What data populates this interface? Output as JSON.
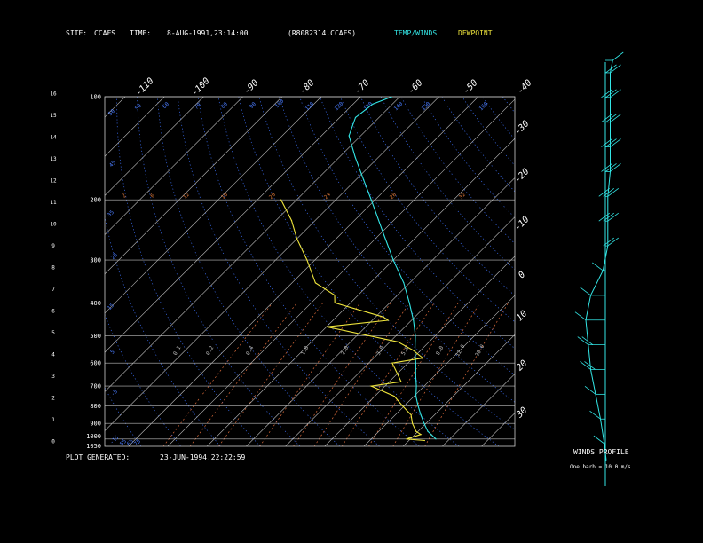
{
  "header": {
    "site_label": "SITE:",
    "site_value": "CCAFS",
    "time_label": "TIME:",
    "time_value": "8-AUG-1991,23:14:00",
    "file": "(R8082314.CCAFS)",
    "temp_legend": "TEMP/WINDS",
    "dew_legend": "DEWPOINT"
  },
  "footer": {
    "generated_label": "PLOT GENERATED:",
    "generated_value": "23-JUN-1994,22:22:59"
  },
  "winds": {
    "title": "WINDS PROFILE",
    "note": "One barb = 10.0 m/s",
    "bottom_km": 0,
    "top_km": 16.5,
    "profile": [
      {
        "h": 0.3,
        "x": 0.02,
        "barbs": 0
      },
      {
        "h": 1.0,
        "x": -0.02,
        "barbs": 1
      },
      {
        "h": 2.0,
        "x": -0.1,
        "barbs": 1
      },
      {
        "h": 3.0,
        "x": -0.2,
        "barbs": 1
      },
      {
        "h": 4.0,
        "x": -0.3,
        "barbs": 2
      },
      {
        "h": 5.0,
        "x": -0.35,
        "barbs": 2
      },
      {
        "h": 6.0,
        "x": -0.4,
        "barbs": 1
      },
      {
        "h": 7.0,
        "x": -0.3,
        "barbs": 1
      },
      {
        "h": 8.0,
        "x": -0.05,
        "barbs": 1
      },
      {
        "h": 9.0,
        "x": 0.05,
        "barbs": 2
      },
      {
        "h": 10.0,
        "x": 0.05,
        "barbs": 3
      },
      {
        "h": 11.0,
        "x": 0.05,
        "barbs": 3
      },
      {
        "h": 12.0,
        "x": 0.1,
        "barbs": 3
      },
      {
        "h": 13.0,
        "x": 0.1,
        "barbs": 3
      },
      {
        "h": 14.0,
        "x": 0.1,
        "barbs": 3
      },
      {
        "h": 15.0,
        "x": 0.1,
        "barbs": 3
      },
      {
        "h": 16.0,
        "x": 0.1,
        "barbs": 2
      },
      {
        "h": 16.5,
        "x": 0.15,
        "barbs": 1
      }
    ]
  },
  "chart_data": {
    "type": "line",
    "diagram": "skew-T log-p",
    "grid": true,
    "pressure_range_hPa": [
      1050,
      100
    ],
    "height_range_km": [
      0,
      16
    ],
    "height_ticks_km": [
      "0",
      "1",
      "2",
      "3",
      "4",
      "5",
      "6",
      "7",
      "8",
      "9",
      "10",
      "11",
      "12",
      "13",
      "14",
      "15",
      "16"
    ],
    "pressure_ticks_hPa": [
      "100",
      "200",
      "300",
      "400",
      "500",
      "600",
      "700",
      "800",
      "900",
      "1000",
      "1050"
    ],
    "isotherm_labels_top_C": [
      "-110",
      "-100",
      "-90",
      "-80",
      "-70",
      "-60",
      "-50",
      "-40"
    ],
    "isotherm_labels_right_C": [
      "-30",
      "-20",
      "-10",
      "0",
      "10",
      "20",
      "30"
    ],
    "mixing_ratio_labels": [
      "0.1",
      "0.2",
      "0.4",
      "1.0",
      "2.0",
      "3.0",
      "5.0",
      "8.0",
      "12.0",
      "20.0"
    ],
    "dry_adiabat_labels": [
      "-15",
      "-5",
      "5",
      "15",
      "25",
      "35",
      "45",
      "55",
      "65",
      "75"
    ],
    "upper_labels_blue": [
      "50",
      "50",
      "60",
      "70",
      "80",
      "90",
      "100",
      "110",
      "120",
      "130",
      "140",
      "150",
      "160"
    ],
    "upper_labels_orange": [
      "2",
      "6",
      "12",
      "16",
      "20",
      "24",
      "28",
      "32"
    ],
    "series": [
      {
        "name": "TEMP/WINDS",
        "color": "#33e6e6",
        "points": [
          {
            "p": 1000,
            "t": 26.5
          },
          {
            "p": 950,
            "t": 22.5
          },
          {
            "p": 900,
            "t": 19.5
          },
          {
            "p": 850,
            "t": 16.5
          },
          {
            "p": 800,
            "t": 13.5
          },
          {
            "p": 750,
            "t": 10.5
          },
          {
            "p": 700,
            "t": 8.0
          },
          {
            "p": 650,
            "t": 5.0
          },
          {
            "p": 600,
            "t": 2.0
          },
          {
            "p": 550,
            "t": -1.5
          },
          {
            "p": 500,
            "t": -5.0
          },
          {
            "p": 450,
            "t": -9.5
          },
          {
            "p": 400,
            "t": -15.0
          },
          {
            "p": 350,
            "t": -21.5
          },
          {
            "p": 300,
            "t": -30.0
          },
          {
            "p": 250,
            "t": -39.5
          },
          {
            "p": 200,
            "t": -51.0
          },
          {
            "p": 175,
            "t": -58.0
          },
          {
            "p": 150,
            "t": -66.0
          },
          {
            "p": 130,
            "t": -73.0
          },
          {
            "p": 115,
            "t": -76.0
          },
          {
            "p": 105,
            "t": -75.0
          },
          {
            "p": 100,
            "t": -72.0
          }
        ]
      },
      {
        "name": "DEWPOINT",
        "color": "#f0e63c",
        "points": [
          {
            "p": 1010,
            "t": 24.0
          },
          {
            "p": 1000,
            "t": 19.0
          },
          {
            "p": 970,
            "t": 21.5
          },
          {
            "p": 950,
            "t": 19.5
          },
          {
            "p": 900,
            "t": 16.5
          },
          {
            "p": 850,
            "t": 14.0
          },
          {
            "p": 800,
            "t": 9.5
          },
          {
            "p": 750,
            "t": 5.0
          },
          {
            "p": 700,
            "t": -3.5
          },
          {
            "p": 680,
            "t": 3.0
          },
          {
            "p": 650,
            "t": 0.5
          },
          {
            "p": 600,
            "t": -4.0
          },
          {
            "p": 580,
            "t": 2.5
          },
          {
            "p": 550,
            "t": -2.0
          },
          {
            "p": 520,
            "t": -8.0
          },
          {
            "p": 470,
            "t": -30.0
          },
          {
            "p": 450,
            "t": -16.0
          },
          {
            "p": 440,
            "t": -18.0
          },
          {
            "p": 400,
            "t": -34.0
          },
          {
            "p": 380,
            "t": -36.0
          },
          {
            "p": 350,
            "t": -44.0
          },
          {
            "p": 300,
            "t": -52.0
          },
          {
            "p": 260,
            "t": -60.0
          },
          {
            "p": 230,
            "t": -66.0
          },
          {
            "p": 200,
            "t": -74.0
          }
        ]
      }
    ]
  }
}
